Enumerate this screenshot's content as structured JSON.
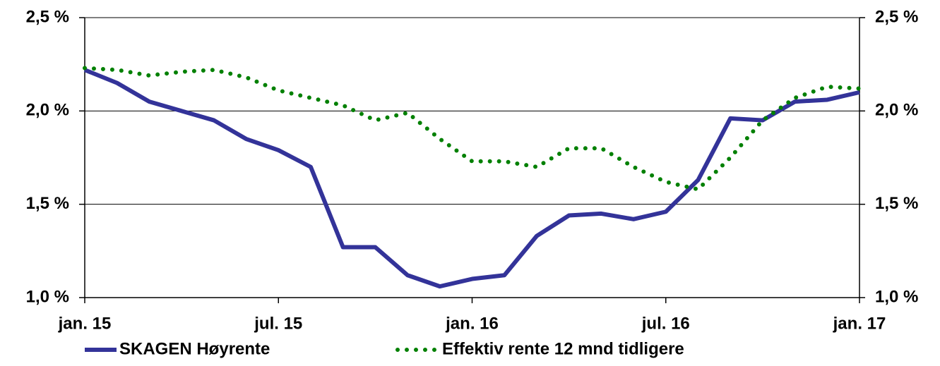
{
  "chart_data": {
    "type": "line",
    "categories": [
      "jan. 15",
      null,
      null,
      null,
      null,
      null,
      "jul. 15",
      null,
      null,
      null,
      null,
      null,
      "jan. 16",
      null,
      null,
      null,
      null,
      null,
      "jul. 16",
      null,
      null,
      null,
      null,
      null,
      "jan. 17"
    ],
    "series": [
      {
        "name": "SKAGEN Høyrente",
        "color": "#333399",
        "style": "solid",
        "values": [
          2.22,
          2.15,
          2.05,
          2.0,
          1.95,
          1.85,
          1.79,
          1.7,
          1.27,
          1.27,
          1.12,
          1.06,
          1.1,
          1.12,
          1.33,
          1.44,
          1.45,
          1.42,
          1.46,
          1.63,
          1.96,
          1.95,
          2.05,
          2.06,
          2.1
        ]
      },
      {
        "name": "Effektiv rente 12 mnd tidligere",
        "color": "#008000",
        "style": "dotted",
        "values": [
          2.23,
          2.22,
          2.19,
          2.21,
          2.22,
          2.18,
          2.11,
          2.07,
          2.03,
          1.95,
          1.99,
          1.85,
          1.73,
          1.73,
          1.7,
          1.8,
          1.8,
          1.7,
          1.62,
          1.58,
          1.75,
          1.95,
          2.07,
          2.13,
          2.12
        ]
      }
    ],
    "ylim": [
      1.0,
      2.5
    ],
    "yticks": [
      {
        "value": 1.0,
        "label": "1,0 %"
      },
      {
        "value": 1.5,
        "label": "1,5 %"
      },
      {
        "value": 2.0,
        "label": "2,0 %"
      },
      {
        "value": 2.5,
        "label": "2,5 %"
      }
    ],
    "y2lim": [
      1.0,
      2.5
    ],
    "y2ticks": [
      {
        "value": 1.0,
        "label": "1,0 %"
      },
      {
        "value": 1.5,
        "label": "1,5 %"
      },
      {
        "value": 2.0,
        "label": "2,0 %"
      },
      {
        "value": 2.5,
        "label": "2,5 %"
      }
    ],
    "grid": true,
    "legend": "bottom"
  }
}
